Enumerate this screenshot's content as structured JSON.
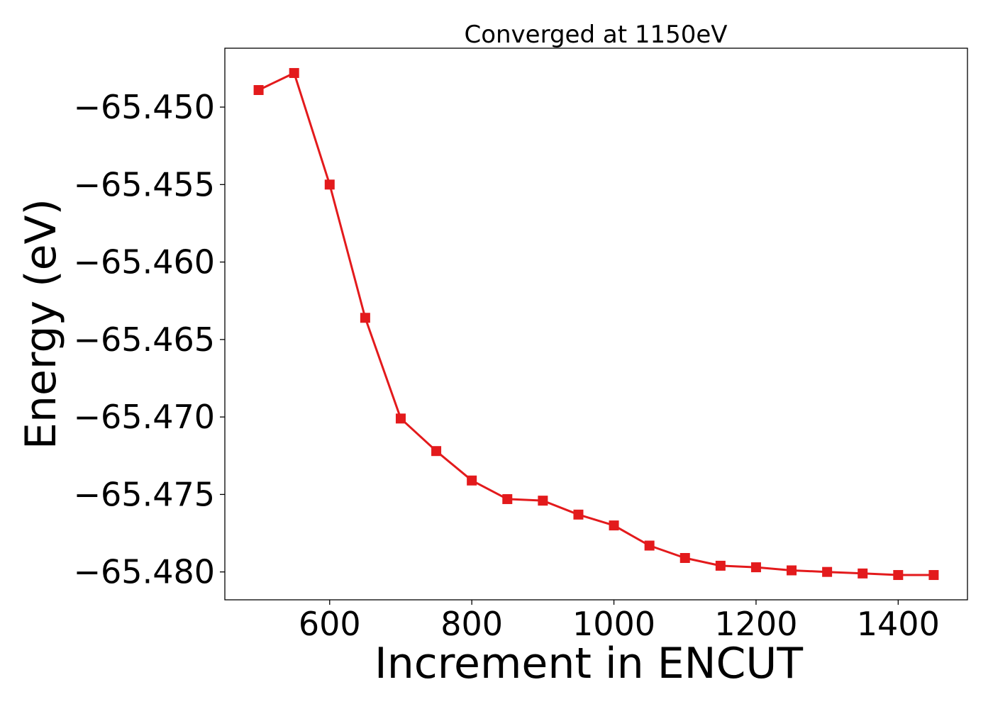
{
  "chart_data": {
    "type": "line",
    "title": "Converged at 1150eV",
    "xlabel": "Increment in ENCUT",
    "ylabel": "Energy (eV)",
    "xlim": [
      452.5,
      1497.5
    ],
    "ylim": [
      -65.4818,
      -65.4462
    ],
    "x_ticks": [
      600,
      800,
      1000,
      1200,
      1400
    ],
    "y_ticks": [
      -65.45,
      -65.455,
      -65.46,
      -65.465,
      -65.47,
      -65.475,
      -65.48
    ],
    "y_tick_labels": [
      "−65.450",
      "−65.455",
      "−65.460",
      "−65.465",
      "−65.470",
      "−65.475",
      "−65.480"
    ],
    "grid": false,
    "legend": "none",
    "series": [
      {
        "color": "#e31a1c",
        "marker": "square",
        "x": [
          500,
          550,
          600,
          650,
          700,
          750,
          800,
          850,
          900,
          950,
          1000,
          1050,
          1100,
          1150,
          1200,
          1250,
          1300,
          1350,
          1400,
          1450
        ],
        "y": [
          -65.4489,
          -65.4478,
          -65.455,
          -65.4636,
          -65.4701,
          -65.4722,
          -65.4741,
          -65.4753,
          -65.4754,
          -65.4763,
          -65.477,
          -65.4783,
          -65.4791,
          -65.4796,
          -65.4797,
          -65.4799,
          -65.48,
          -65.4801,
          -65.4802,
          -65.4802
        ]
      }
    ]
  }
}
